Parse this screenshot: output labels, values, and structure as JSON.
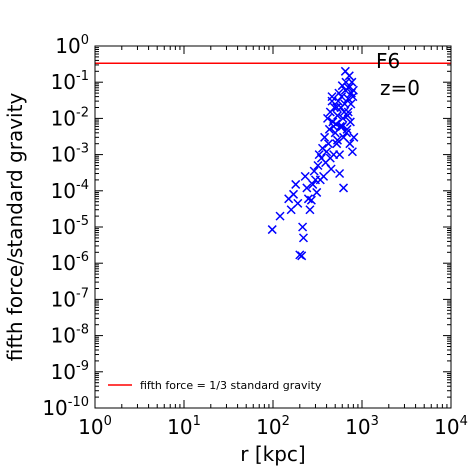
{
  "chart_data": {
    "type": "scatter",
    "xlabel": "r [kpc]",
    "ylabel": "fifth force/standard gravity",
    "xscale": "log",
    "yscale": "log",
    "xlim": [
      1,
      10000
    ],
    "ylim": [
      1e-10,
      1
    ],
    "x_ticks": [
      {
        "base": "10",
        "exp": "0",
        "value": 1
      },
      {
        "base": "10",
        "exp": "1",
        "value": 10
      },
      {
        "base": "10",
        "exp": "2",
        "value": 100
      },
      {
        "base": "10",
        "exp": "3",
        "value": 1000
      },
      {
        "base": "10",
        "exp": "4",
        "value": 10000
      }
    ],
    "y_ticks": [
      {
        "base": "10",
        "exp": "0",
        "value": 1
      },
      {
        "base": "10",
        "exp": "-1",
        "value": 0.1
      },
      {
        "base": "10",
        "exp": "-2",
        "value": 0.01
      },
      {
        "base": "10",
        "exp": "-3",
        "value": 0.001
      },
      {
        "base": "10",
        "exp": "-4",
        "value": 0.0001
      },
      {
        "base": "10",
        "exp": "-5",
        "value": 1e-05
      },
      {
        "base": "10",
        "exp": "-6",
        "value": 1e-06
      },
      {
        "base": "10",
        "exp": "-7",
        "value": 1e-07
      },
      {
        "base": "10",
        "exp": "-8",
        "value": 1e-08
      },
      {
        "base": "10",
        "exp": "-9",
        "value": 1e-09
      },
      {
        "base": "10",
        "exp": "-10",
        "value": 1e-10
      }
    ],
    "annotations": [
      "F6",
      "z=0"
    ],
    "reference_line": {
      "y": 0.3333,
      "color": "#ff0000",
      "label": "fifth force = 1/3 standard gravity"
    },
    "legend_position": "lower-left",
    "grid": false,
    "series": [
      {
        "marker": "x",
        "color": "#0000ff",
        "points": [
          [
            98,
            8.5e-06
          ],
          [
            120,
            2e-05
          ],
          [
            150,
            6e-05
          ],
          [
            160,
            3e-05
          ],
          [
            170,
            8e-05
          ],
          [
            180,
            0.00015
          ],
          [
            190,
            4.5e-05
          ],
          [
            200,
            1.7e-06
          ],
          [
            210,
            1.6e-06
          ],
          [
            215,
            1e-05
          ],
          [
            220,
            5e-06
          ],
          [
            230,
            0.00025
          ],
          [
            240,
            0.00012
          ],
          [
            250,
            6e-05
          ],
          [
            260,
            3e-05
          ],
          [
            270,
            5.5e-05
          ],
          [
            280,
            0.00015
          ],
          [
            290,
            0.00035
          ],
          [
            300,
            0.0002
          ],
          [
            310,
            9e-05
          ],
          [
            320,
            0.0005
          ],
          [
            330,
            0.001
          ],
          [
            340,
            0.0002
          ],
          [
            350,
            0.0008
          ],
          [
            360,
            0.0015
          ],
          [
            370,
            0.00025
          ],
          [
            380,
            0.003
          ],
          [
            390,
            0.0006
          ],
          [
            400,
            0.0012
          ],
          [
            410,
            0.01
          ],
          [
            420,
            0.002
          ],
          [
            430,
            0.005
          ],
          [
            440,
            0.015
          ],
          [
            450,
            0.0004
          ],
          [
            460,
            0.03
          ],
          [
            470,
            0.008
          ],
          [
            480,
            0.001
          ],
          [
            490,
            0.02
          ],
          [
            500,
            0.004
          ],
          [
            510,
            0.007
          ],
          [
            520,
            0.002
          ],
          [
            530,
            0.012
          ],
          [
            540,
            0.03
          ],
          [
            550,
            0.05
          ],
          [
            560,
            0.001
          ],
          [
            570,
            0.006
          ],
          [
            580,
            0.02
          ],
          [
            590,
            0.04
          ],
          [
            600,
            0.08
          ],
          [
            610,
            0.01
          ],
          [
            620,
            0.003
          ],
          [
            630,
            0.015
          ],
          [
            640,
            0.025
          ],
          [
            650,
            0.06
          ],
          [
            660,
            0.1
          ],
          [
            670,
            0.004
          ],
          [
            680,
            0.005
          ],
          [
            690,
            0.012
          ],
          [
            700,
            0.035
          ],
          [
            710,
            0.07
          ],
          [
            720,
            0.15
          ],
          [
            730,
            0.002
          ],
          [
            740,
            0.008
          ],
          [
            750,
            0.025
          ],
          [
            760,
            0.05
          ],
          [
            770,
            0.1
          ],
          [
            780,
            0.0012
          ],
          [
            790,
            0.04
          ],
          [
            800,
            0.06
          ],
          [
            810,
            0.003
          ],
          [
            620,
            0.00012
          ],
          [
            530,
            0.0025
          ],
          [
            480,
            0.006
          ],
          [
            440,
            0.0008
          ],
          [
            560,
            0.0003
          ],
          [
            650,
            0.2
          ],
          [
            700,
            0.015
          ],
          [
            600,
            0.006
          ],
          [
            520,
            0.02
          ],
          [
            460,
            0.04
          ]
        ]
      }
    ]
  }
}
